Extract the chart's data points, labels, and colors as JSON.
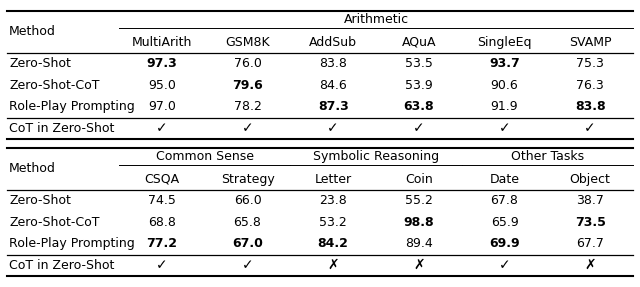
{
  "top_table": {
    "group_header": "Arithmetic",
    "subheaders": [
      "MultiArith",
      "GSM8K",
      "AddSub",
      "AQuA",
      "SingleEq",
      "SVAMP"
    ],
    "rows": [
      {
        "method": "Zero-Shot",
        "values": [
          "97.3",
          "76.0",
          "83.8",
          "53.5",
          "93.7",
          "75.3"
        ],
        "bold": [
          true,
          false,
          false,
          false,
          true,
          false
        ]
      },
      {
        "method": "Zero-Shot-CoT",
        "values": [
          "95.0",
          "79.6",
          "84.6",
          "53.9",
          "90.6",
          "76.3"
        ],
        "bold": [
          false,
          true,
          false,
          false,
          false,
          false
        ]
      },
      {
        "method": "Role-Play Prompting",
        "values": [
          "97.0",
          "78.2",
          "87.3",
          "63.8",
          "91.9",
          "83.8"
        ],
        "bold": [
          false,
          false,
          true,
          true,
          false,
          true
        ]
      }
    ],
    "cot_row": {
      "label": "CoT in Zero-Shot",
      "checks": [
        true,
        true,
        true,
        true,
        true,
        true
      ]
    }
  },
  "bottom_table": {
    "groups": [
      {
        "name": "Common Sense"
      },
      {
        "name": "Symbolic Reasoning"
      },
      {
        "name": "Other Tasks"
      }
    ],
    "group_col_ranges": [
      [
        0,
        2
      ],
      [
        2,
        4
      ],
      [
        4,
        6
      ]
    ],
    "subheaders": [
      "CSQA",
      "Strategy",
      "Letter",
      "Coin",
      "Date",
      "Object"
    ],
    "rows": [
      {
        "method": "Zero-Shot",
        "values": [
          "74.5",
          "66.0",
          "23.8",
          "55.2",
          "67.8",
          "38.7"
        ],
        "bold": [
          false,
          false,
          false,
          false,
          false,
          false
        ]
      },
      {
        "method": "Zero-Shot-CoT",
        "values": [
          "68.8",
          "65.8",
          "53.2",
          "98.8",
          "65.9",
          "73.5"
        ],
        "bold": [
          false,
          false,
          false,
          true,
          false,
          true
        ]
      },
      {
        "method": "Role-Play Prompting",
        "values": [
          "77.2",
          "67.0",
          "84.2",
          "89.4",
          "69.9",
          "67.7"
        ],
        "bold": [
          true,
          true,
          true,
          false,
          true,
          false
        ]
      }
    ],
    "cot_row": {
      "label": "CoT in Zero-Shot",
      "checks": [
        true,
        true,
        false,
        false,
        true,
        false
      ]
    }
  },
  "font_size": 9,
  "bg_color": "white",
  "check_symbol": "✓",
  "cross_symbol": "✗"
}
